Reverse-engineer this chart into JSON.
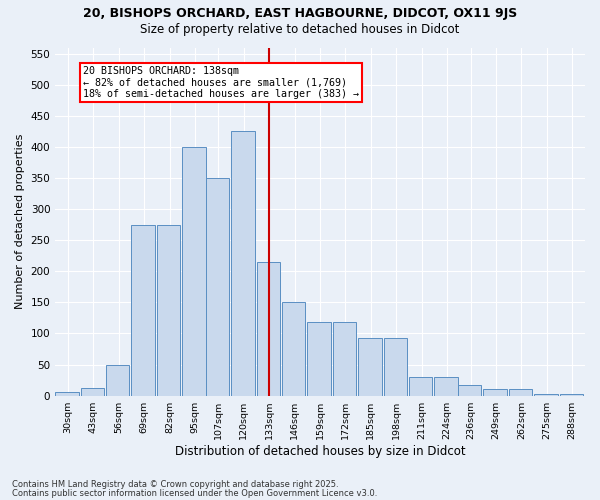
{
  "title1": "20, BISHOPS ORCHARD, EAST HAGBOURNE, DIDCOT, OX11 9JS",
  "title2": "Size of property relative to detached houses in Didcot",
  "xlabel": "Distribution of detached houses by size in Didcot",
  "ylabel": "Number of detached properties",
  "annotation_line": "20 BISHOPS ORCHARD: 138sqm",
  "annotation_left": "← 82% of detached houses are smaller (1,769)",
  "annotation_right": "18% of semi-detached houses are larger (383) →",
  "bin_starts": [
    30,
    43,
    56,
    69,
    82,
    95,
    107,
    120,
    133,
    146,
    159,
    172,
    185,
    198,
    211,
    224,
    236,
    249,
    262,
    275,
    288
  ],
  "bin_labels": [
    "30sqm",
    "43sqm",
    "56sqm",
    "69sqm",
    "82sqm",
    "95sqm",
    "107sqm",
    "120sqm",
    "133sqm",
    "146sqm",
    "159sqm",
    "172sqm",
    "185sqm",
    "198sqm",
    "211sqm",
    "224sqm",
    "236sqm",
    "249sqm",
    "262sqm",
    "275sqm",
    "288sqm"
  ],
  "values": [
    5,
    12,
    50,
    275,
    275,
    400,
    350,
    425,
    215,
    150,
    118,
    118,
    93,
    93,
    30,
    30,
    17,
    10,
    10,
    2,
    2
  ],
  "bar_color": "#c9d9ed",
  "bar_edge_color": "#5a8fc3",
  "vline_bin_idx": 8,
  "vline_color": "#cc0000",
  "bg_color": "#eaf0f8",
  "grid_color": "#ffffff",
  "ylim": [
    0,
    560
  ],
  "yticks": [
    0,
    50,
    100,
    150,
    200,
    250,
    300,
    350,
    400,
    450,
    500,
    550
  ],
  "footer1": "Contains HM Land Registry data © Crown copyright and database right 2025.",
  "footer2": "Contains public sector information licensed under the Open Government Licence v3.0."
}
